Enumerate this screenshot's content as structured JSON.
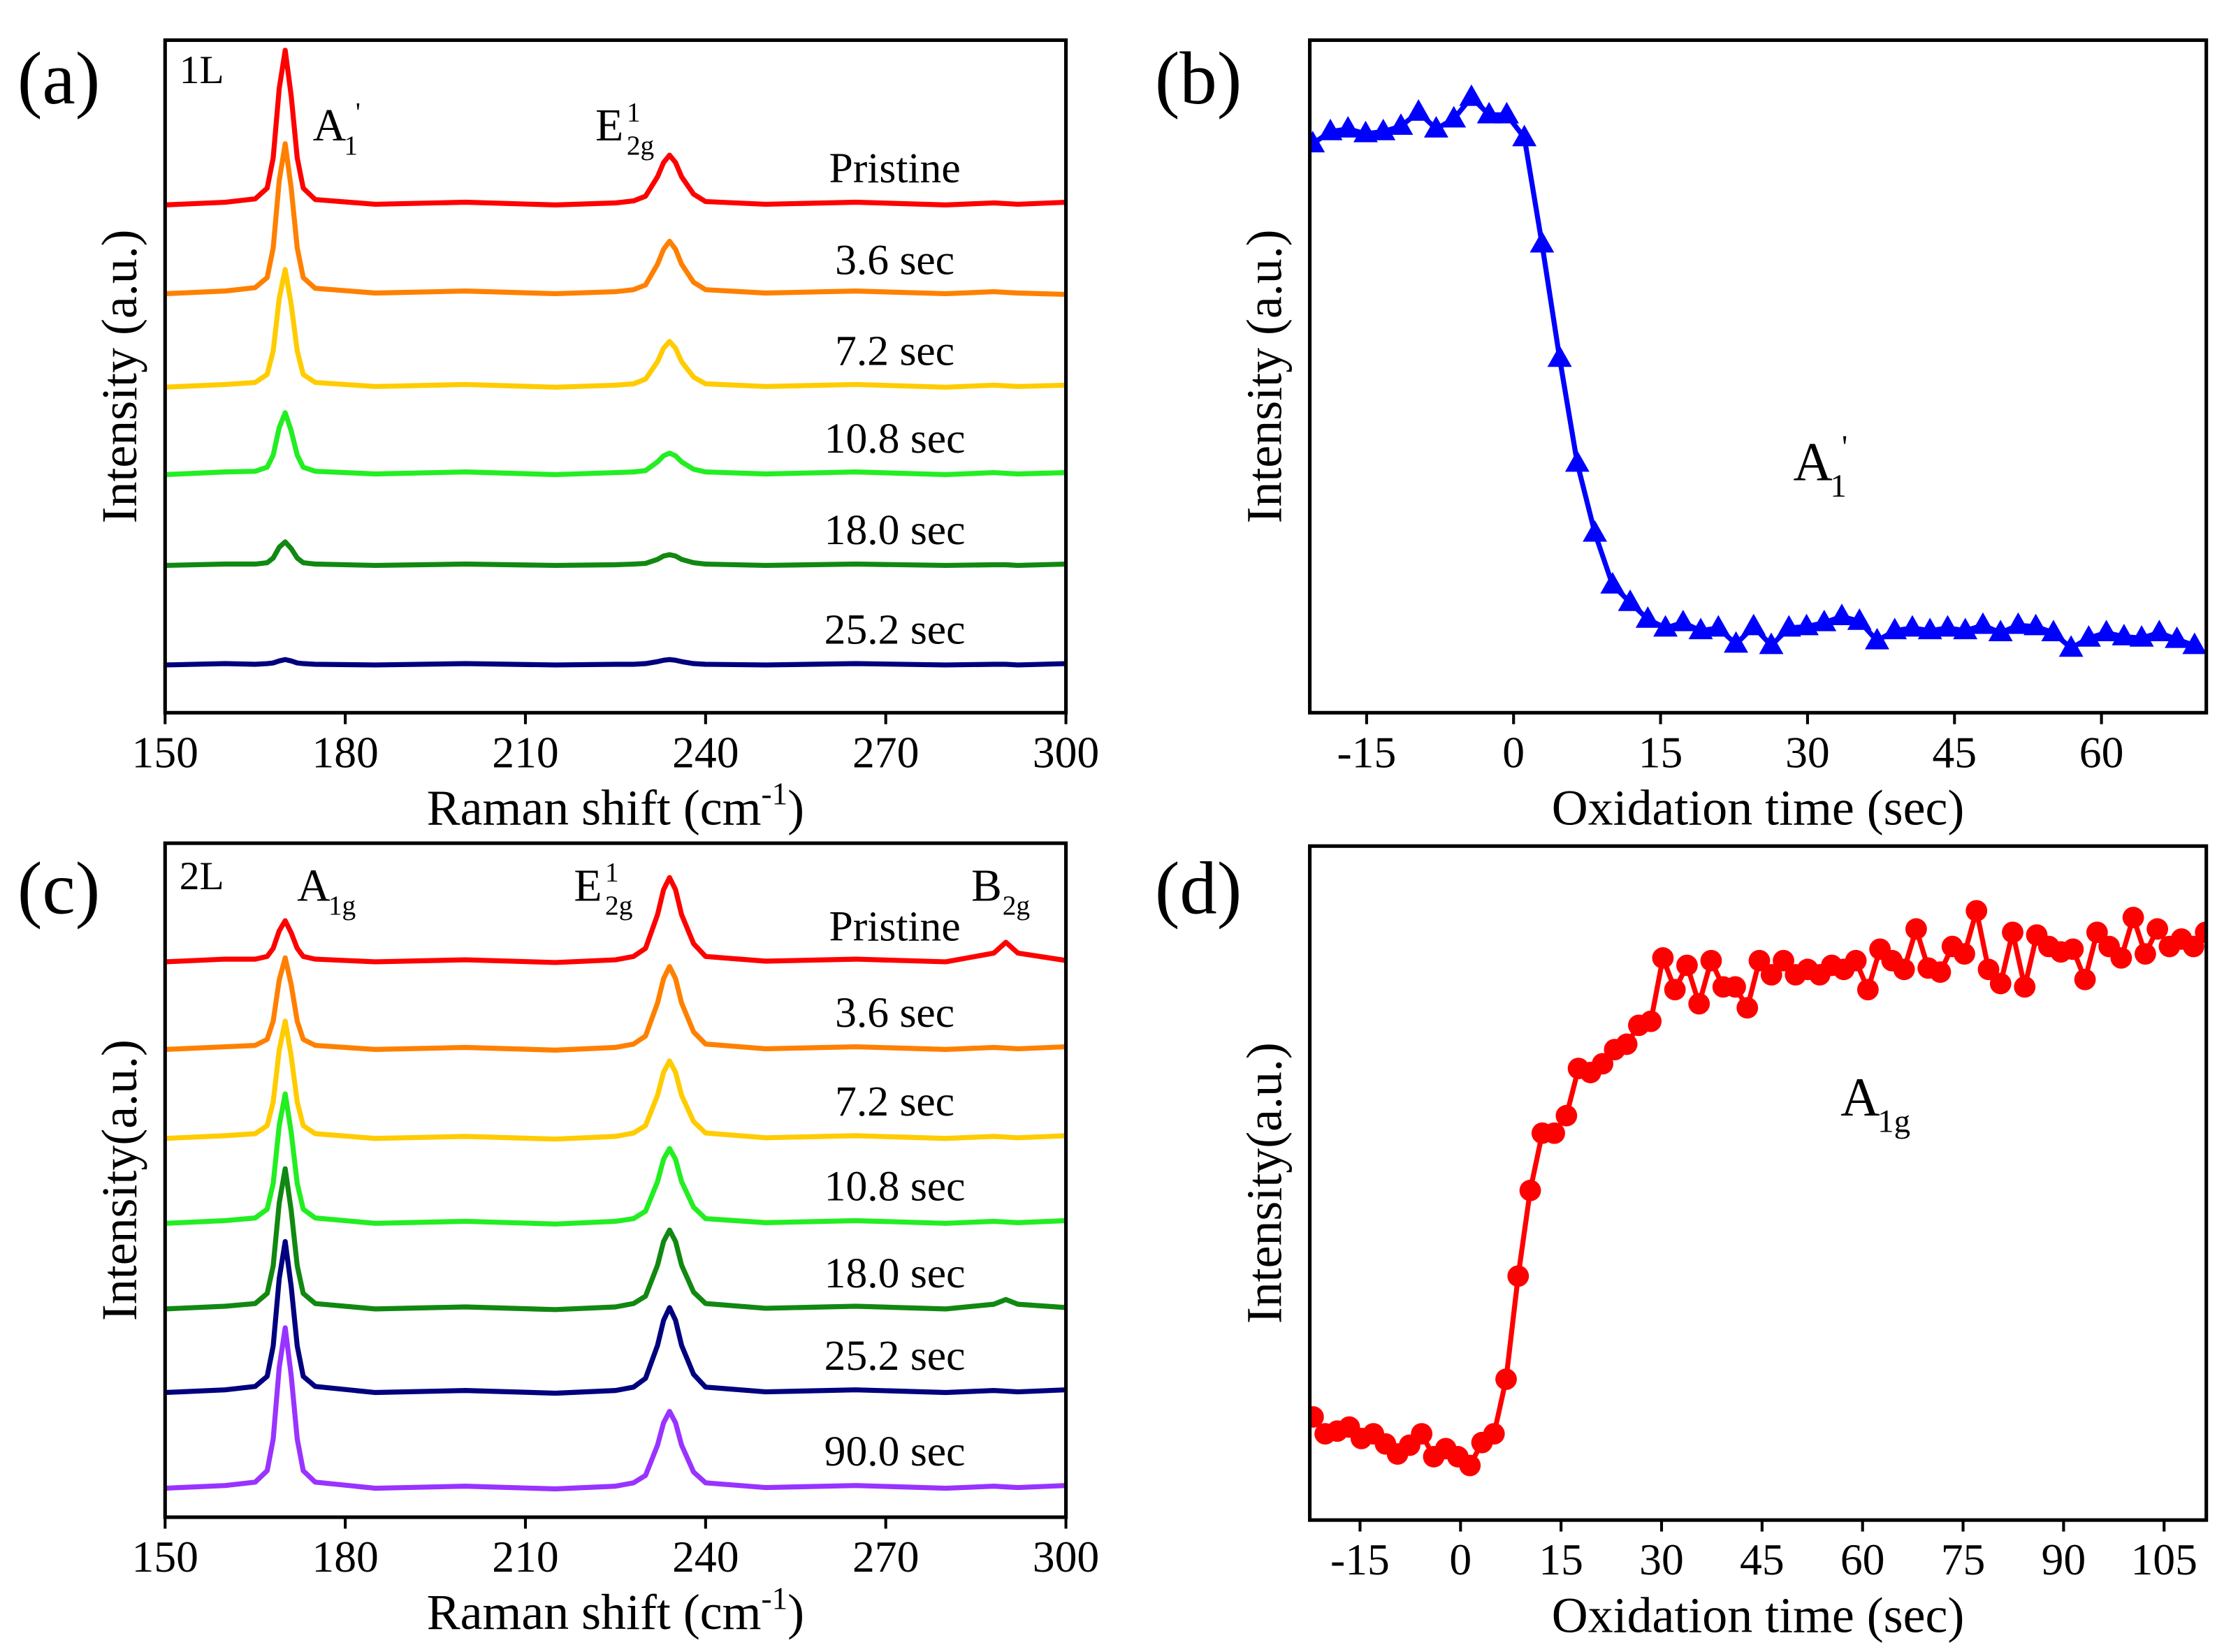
{
  "chart_data": [
    {
      "type": "line",
      "panel_label": "(a)",
      "sample_label": "1L",
      "x_label": {
        "text": "Raman shift (cm",
        "sup": "-1",
        "suffix": ")"
      },
      "y_label": "Intensity (a.u.)",
      "xlim": [
        150,
        300
      ],
      "xticks": [
        150,
        180,
        210,
        240,
        270,
        300
      ],
      "ylim": [
        0,
        100
      ],
      "peak_labels": [
        {
          "base": "A",
          "sub": "1",
          "sup": "'"
        },
        {
          "base": "E",
          "sub": "2g",
          "sup": "1"
        }
      ],
      "x": [
        150,
        160,
        165,
        167,
        168,
        169,
        170,
        171,
        172,
        173,
        175,
        185,
        200,
        215,
        225,
        228,
        230,
        232,
        233,
        234,
        235,
        236,
        238,
        240,
        250,
        265,
        280,
        288,
        290,
        292,
        300
      ],
      "series": [
        {
          "name": "Pristine",
          "color": "#ff0000",
          "values": [
            75.5,
            75.9,
            76.4,
            78.0,
            82.5,
            92.8,
            98.5,
            91.7,
            82.5,
            78.0,
            76.3,
            75.6,
            75.9,
            75.5,
            75.8,
            76.1,
            76.8,
            79.7,
            81.8,
            82.9,
            81.8,
            79.7,
            77.1,
            76.0,
            75.6,
            75.9,
            75.5,
            75.8,
            75.7,
            75.6,
            75.9
          ]
        },
        {
          "name": "3.6 sec",
          "color": "#ff8000",
          "values": [
            62.3,
            62.7,
            63.2,
            64.7,
            69.1,
            79.1,
            84.6,
            78.0,
            69.1,
            64.7,
            63.1,
            62.4,
            62.7,
            62.3,
            62.6,
            62.9,
            63.6,
            66.7,
            68.9,
            70.1,
            68.9,
            66.7,
            64.0,
            62.9,
            62.4,
            62.7,
            62.3,
            62.6,
            62.5,
            62.4,
            62.2
          ]
        },
        {
          "name": "7.2 sec",
          "color": "#ffcc00",
          "values": [
            48.4,
            48.8,
            49.1,
            50.3,
            53.8,
            61.6,
            65.9,
            60.7,
            53.8,
            50.3,
            49.1,
            48.5,
            48.8,
            48.4,
            48.7,
            48.9,
            49.6,
            52.2,
            54.2,
            55.2,
            54.2,
            52.2,
            49.9,
            48.9,
            48.5,
            48.8,
            48.4,
            48.7,
            48.6,
            48.5,
            48.7
          ]
        },
        {
          "name": "10.8 sec",
          "color": "#22ee22",
          "values": [
            35.4,
            35.8,
            35.9,
            36.5,
            38.3,
            42.4,
            44.6,
            41.9,
            38.3,
            36.5,
            35.9,
            35.5,
            35.8,
            35.4,
            35.7,
            35.8,
            36.0,
            37.3,
            38.2,
            38.6,
            38.2,
            37.3,
            36.2,
            35.8,
            35.5,
            35.8,
            35.4,
            35.7,
            35.6,
            35.5,
            35.7
          ]
        },
        {
          "name": "18.0 sec",
          "color": "#118811",
          "values": [
            21.9,
            22.1,
            22.1,
            22.3,
            23.0,
            24.6,
            25.4,
            24.4,
            23.0,
            22.3,
            22.1,
            21.9,
            22.1,
            21.9,
            22.0,
            22.1,
            22.2,
            22.8,
            23.3,
            23.5,
            23.3,
            22.8,
            22.3,
            22.1,
            21.9,
            22.1,
            21.9,
            22.0,
            22.0,
            21.9,
            22.1
          ]
        },
        {
          "name": "25.2 sec",
          "color": "#00007f",
          "values": [
            7.1,
            7.3,
            7.2,
            7.3,
            7.4,
            7.7,
            7.9,
            7.7,
            7.4,
            7.3,
            7.2,
            7.1,
            7.3,
            7.1,
            7.2,
            7.2,
            7.3,
            7.6,
            7.8,
            7.9,
            7.8,
            7.6,
            7.3,
            7.2,
            7.1,
            7.3,
            7.1,
            7.2,
            7.2,
            7.1,
            7.3
          ]
        }
      ]
    },
    {
      "type": "line",
      "panel_label": "(b)",
      "marker": "triangle",
      "x_label": {
        "text": "Oxidation time (sec)"
      },
      "y_label": "Intensity (a.u.)",
      "xlim": [
        -20.8,
        70.7
      ],
      "xticks": [
        -15,
        0,
        15,
        30,
        45,
        60
      ],
      "ylim": [
        0,
        100
      ],
      "peak_labels": [
        {
          "base": "A",
          "sub": "1",
          "sup": "'"
        }
      ],
      "x": [
        -20.5,
        -18.7,
        -16.9,
        -15.1,
        -13.3,
        -11.5,
        -9.7,
        -7.9,
        -6.1,
        -4.3,
        -2.5,
        -0.7,
        1.1,
        2.9,
        4.7,
        6.5,
        8.3,
        10.1,
        11.9,
        13.7,
        15.5,
        17.3,
        19.1,
        20.9,
        22.7,
        24.5,
        26.3,
        28.1,
        29.9,
        31.7,
        33.5,
        35.3,
        37.1,
        38.9,
        40.7,
        42.5,
        44.3,
        46.1,
        47.9,
        49.7,
        51.5,
        53.3,
        55.1,
        56.9,
        58.7,
        60.5,
        62.3,
        64.1,
        65.9,
        67.7,
        69.5
      ],
      "series": [
        {
          "color": "#0000ff",
          "values": [
            84.6,
            86.4,
            86.8,
            86.1,
            86.4,
            87.2,
            89.3,
            86.8,
            88.3,
            91.5,
            88.9,
            88.9,
            85.5,
            69.7,
            52.7,
            37.1,
            26.7,
            19.0,
            16.4,
            13.9,
            12.6,
            13.4,
            12.2,
            12.6,
            10.2,
            12.8,
            10.0,
            12.6,
            12.8,
            13.4,
            14.3,
            13.6,
            10.7,
            12.2,
            12.6,
            12.2,
            12.6,
            12.2,
            13.0,
            11.9,
            13.0,
            12.8,
            11.9,
            9.6,
            11.1,
            11.9,
            11.3,
            11.1,
            11.9,
            10.9,
            10.0
          ]
        }
      ]
    },
    {
      "type": "line",
      "panel_label": "(c)",
      "sample_label": "2L",
      "x_label": {
        "text": "Raman shift (cm",
        "sup": "-1",
        "suffix": ")"
      },
      "y_label": "Intensity(a.u.)",
      "xlim": [
        150,
        300
      ],
      "xticks": [
        150,
        180,
        210,
        240,
        270,
        300
      ],
      "ylim": [
        0,
        100
      ],
      "peak_labels": [
        {
          "base": "A",
          "sub": "1g"
        },
        {
          "base": "E",
          "sub": "2g",
          "sup": "1"
        },
        {
          "base": "B",
          "sub": "2g"
        }
      ],
      "x": [
        150,
        160,
        165,
        167,
        168,
        169,
        170,
        171,
        172,
        173,
        175,
        185,
        200,
        215,
        225,
        228,
        230,
        232,
        233,
        234,
        235,
        236,
        238,
        240,
        250,
        265,
        280,
        288,
        290,
        292,
        300
      ],
      "series": [
        {
          "name": "Pristine",
          "color": "#ff0000",
          "values": [
            82.4,
            82.8,
            82.8,
            83.2,
            84.4,
            87.0,
            88.5,
            86.7,
            84.4,
            83.2,
            82.8,
            82.4,
            82.7,
            82.3,
            82.7,
            83.2,
            84.4,
            89.4,
            93.1,
            94.9,
            93.1,
            89.4,
            85.1,
            83.2,
            82.5,
            82.8,
            82.4,
            83.7,
            85.3,
            83.7,
            82.6
          ]
        },
        {
          "name": "3.6 sec",
          "color": "#ff8000",
          "values": [
            69.4,
            69.8,
            70.0,
            70.9,
            73.6,
            79.7,
            83.0,
            79.0,
            73.6,
            70.9,
            70.0,
            69.4,
            69.7,
            69.3,
            69.7,
            70.2,
            71.4,
            76.3,
            79.9,
            81.7,
            79.9,
            76.3,
            72.0,
            70.2,
            69.5,
            69.8,
            69.4,
            69.7,
            69.6,
            69.5,
            69.8
          ]
        },
        {
          "name": "7.2 sec",
          "color": "#ffcc00",
          "values": [
            56.2,
            56.6,
            56.9,
            58.1,
            61.6,
            69.3,
            73.6,
            68.4,
            61.6,
            58.1,
            56.9,
            56.2,
            56.5,
            56.1,
            56.5,
            57.0,
            58.1,
            62.6,
            66.0,
            67.7,
            66.0,
            62.6,
            58.7,
            57.0,
            56.3,
            56.6,
            56.2,
            56.5,
            56.4,
            56.3,
            56.6
          ]
        },
        {
          "name": "10.8 sec",
          "color": "#22ee22",
          "values": [
            43.6,
            44.0,
            44.4,
            45.7,
            49.5,
            58.1,
            62.8,
            57.1,
            49.5,
            45.7,
            44.4,
            43.6,
            43.9,
            43.5,
            43.9,
            44.3,
            45.4,
            49.8,
            53.1,
            54.7,
            53.1,
            49.8,
            46.0,
            44.3,
            43.7,
            44.0,
            43.6,
            43.9,
            43.8,
            43.7,
            44.0
          ]
        },
        {
          "name": "18.0 sec",
          "color": "#118811",
          "values": [
            30.9,
            31.3,
            31.7,
            33.2,
            37.3,
            46.6,
            51.7,
            45.5,
            37.3,
            33.2,
            31.7,
            30.9,
            31.2,
            30.8,
            31.2,
            31.7,
            32.8,
            37.4,
            40.9,
            42.6,
            40.9,
            37.4,
            33.4,
            31.7,
            31.0,
            31.3,
            30.9,
            31.6,
            32.3,
            31.6,
            31.1
          ]
        },
        {
          "name": "25.2 sec",
          "color": "#00007f",
          "values": [
            18.5,
            18.9,
            19.4,
            20.9,
            25.4,
            35.4,
            40.9,
            34.2,
            25.4,
            20.9,
            19.4,
            18.5,
            18.8,
            18.4,
            18.8,
            19.3,
            20.6,
            25.5,
            29.2,
            31.1,
            29.2,
            25.5,
            21.2,
            19.3,
            18.6,
            18.9,
            18.5,
            18.8,
            18.7,
            18.6,
            18.9
          ]
        },
        {
          "name": "90.0 sec",
          "color": "#9933ff",
          "values": [
            4.3,
            4.7,
            5.2,
            6.9,
            11.6,
            22.2,
            28.1,
            21.0,
            11.6,
            6.9,
            5.2,
            4.3,
            4.6,
            4.2,
            4.6,
            5.1,
            6.2,
            10.7,
            14.0,
            15.7,
            14.0,
            10.7,
            6.7,
            5.1,
            4.4,
            4.7,
            4.3,
            4.6,
            4.5,
            4.4,
            4.7
          ]
        }
      ]
    },
    {
      "type": "line",
      "panel_label": "(d)",
      "marker": "circle",
      "x_label": {
        "text": "Oxidation time (sec)"
      },
      "y_label": "Intensity(a.u.)",
      "xlim": [
        -22.5,
        111.3
      ],
      "xticks": [
        -15,
        0,
        15,
        30,
        45,
        60,
        75,
        90,
        105
      ],
      "ylim": [
        0,
        100
      ],
      "peak_labels": [
        {
          "base": "A",
          "sub": "1g"
        }
      ],
      "x": [
        -22,
        -20.2,
        -18.4,
        -16.6,
        -14.8,
        -13,
        -11.2,
        -9.4,
        -7.6,
        -5.8,
        -4,
        -2.2,
        -0.4,
        1.4,
        3.2,
        5,
        6.8,
        8.6,
        10.4,
        12.2,
        14,
        15.8,
        17.6,
        19.4,
        21.2,
        23,
        24.8,
        26.6,
        28.4,
        30.2,
        32,
        33.8,
        35.6,
        37.4,
        39.2,
        41,
        42.8,
        44.6,
        46.4,
        48.2,
        50,
        51.8,
        53.6,
        55.4,
        57.2,
        59,
        60.8,
        62.6,
        64.4,
        66.2,
        68,
        69.8,
        71.6,
        73.4,
        75.2,
        77,
        78.8,
        80.6,
        82.4,
        84.2,
        86,
        87.8,
        89.6,
        91.4,
        93.2,
        95,
        96.8,
        98.6,
        100.4,
        102.2,
        104,
        105.8,
        107.6,
        109.4,
        111.2
      ],
      "series": [
        {
          "color": "#ff0000",
          "values": [
            15.3,
            12.8,
            13.2,
            13.8,
            12.1,
            12.8,
            11.3,
            9.8,
            11.1,
            12.8,
            9.4,
            10.6,
            9.4,
            8.1,
            11.5,
            12.8,
            20.9,
            36.2,
            48.9,
            57.4,
            57.4,
            60.0,
            67.0,
            66.4,
            67.7,
            69.8,
            70.6,
            73.4,
            74.0,
            83.4,
            78.7,
            82.3,
            76.6,
            83.0,
            79.1,
            79.1,
            76.0,
            83.0,
            80.9,
            83.0,
            80.9,
            81.7,
            80.9,
            82.3,
            81.7,
            83.0,
            78.7,
            84.7,
            83.0,
            81.7,
            87.7,
            81.9,
            81.3,
            85.1,
            84.0,
            90.4,
            81.7,
            79.6,
            87.2,
            79.1,
            86.8,
            85.1,
            84.3,
            84.7,
            80.2,
            87.2,
            85.1,
            83.4,
            89.4,
            84.0,
            87.7,
            85.1,
            86.2,
            85.1,
            87.2
          ]
        }
      ]
    }
  ]
}
